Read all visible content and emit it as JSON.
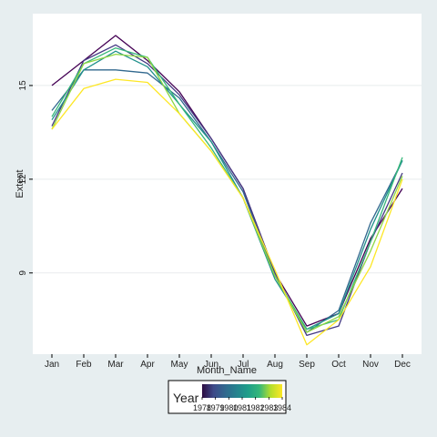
{
  "chart_data": {
    "type": "line",
    "title": "",
    "xlabel": "Month_Name",
    "ylabel": "Extent",
    "categories": [
      "Jan",
      "Feb",
      "Mar",
      "Apr",
      "May",
      "Jun",
      "Jul",
      "Aug",
      "Sep",
      "Oct",
      "Nov",
      "Dec"
    ],
    "yticks": [
      9,
      12,
      15
    ],
    "ylim": [
      6.4,
      17.3
    ],
    "grid": "horizontal",
    "legend": {
      "title": "Year",
      "position": "bottom",
      "tick_labels": [
        "1978",
        "1979",
        "1980",
        "1981",
        "1982",
        "1983",
        "1984"
      ],
      "range": [
        1978,
        1984
      ],
      "colors": [
        "#2d0c41",
        "#3e4a89",
        "#31688e",
        "#26828e",
        "#1f9e89",
        "#35b779",
        "#b5de2b",
        "#fde725"
      ]
    },
    "series": [
      {
        "year": 1978,
        "color": "#440154",
        "values": [
          15.0,
          15.8,
          16.6,
          15.8,
          14.8,
          13.3,
          11.7,
          9.0,
          7.3,
          7.7,
          10.1,
          11.7
        ]
      },
      {
        "year": 1979,
        "color": "#443983",
        "values": [
          13.7,
          15.8,
          16.3,
          15.7,
          14.7,
          13.3,
          11.7,
          9.0,
          7.0,
          7.3,
          10.0,
          12.2
        ]
      },
      {
        "year": 1980,
        "color": "#31688e",
        "values": [
          14.2,
          15.5,
          15.5,
          15.4,
          14.6,
          13.2,
          11.6,
          8.9,
          7.1,
          7.8,
          10.6,
          12.6
        ]
      },
      {
        "year": 1981,
        "color": "#21918c",
        "values": [
          13.9,
          15.5,
          16.1,
          15.6,
          14.4,
          13.2,
          11.4,
          8.8,
          7.2,
          7.7,
          10.4,
          12.6
        ]
      },
      {
        "year": 1982,
        "color": "#35b779",
        "values": [
          14.0,
          15.7,
          16.2,
          15.9,
          14.4,
          13.0,
          11.4,
          8.9,
          7.2,
          7.5,
          10.0,
          12.7
        ]
      },
      {
        "year": 1983,
        "color": "#8fd744",
        "values": [
          13.6,
          15.7,
          16.0,
          15.9,
          14.1,
          12.9,
          11.4,
          8.9,
          7.1,
          7.6,
          9.7,
          12.1
        ]
      },
      {
        "year": 1984,
        "color": "#fde725",
        "values": [
          13.6,
          14.9,
          15.2,
          15.1,
          14.1,
          12.9,
          11.4,
          9.1,
          6.7,
          7.5,
          9.2,
          12.0
        ]
      }
    ]
  }
}
